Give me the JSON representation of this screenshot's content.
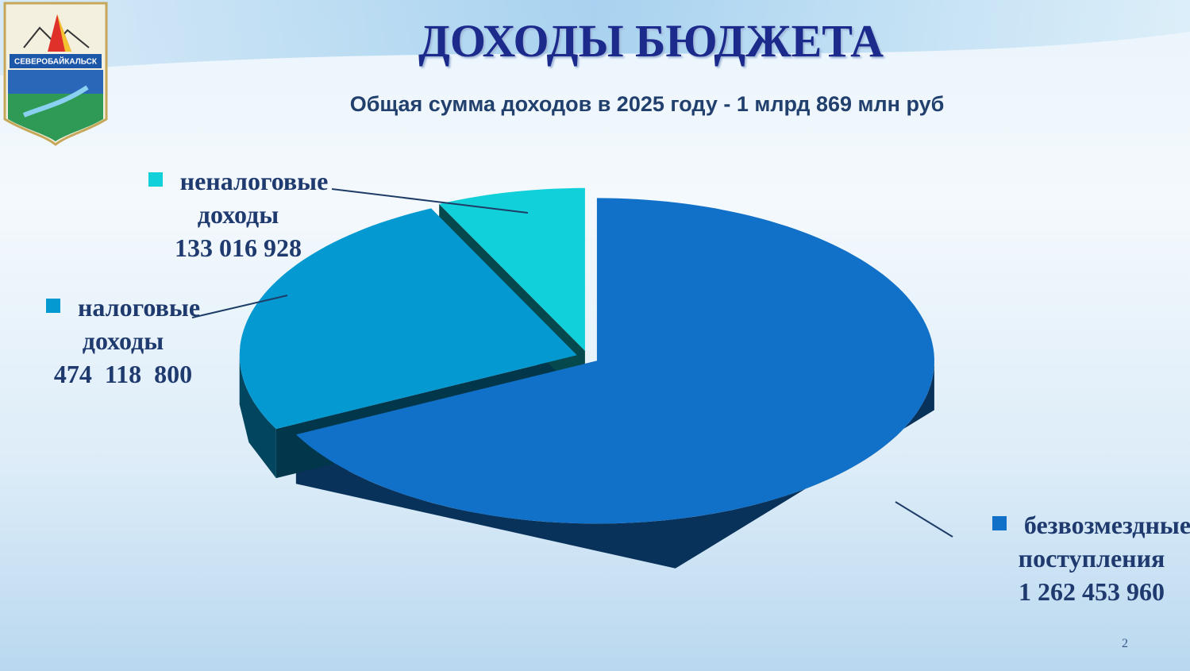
{
  "logo": {
    "text": "СЕВЕРОБАЙКАЛЬСК"
  },
  "slide_number": "2",
  "chart_data": {
    "type": "pie",
    "title": "ДОХОДЫ БЮДЖЕТА",
    "subtitle": "Общая сумма доходов в 2025 году - 1 млрд 869 млн руб",
    "categories": [
      "безвозмездные поступления",
      "налоговые доходы",
      "неналоговые доходы"
    ],
    "values": [
      1262453960,
      474118800,
      133016928
    ],
    "value_labels": [
      "1 262 453 960",
      "474  118  800",
      "133 016 928"
    ],
    "colors": [
      "#1170c8",
      "#0599d2",
      "#12d0da"
    ]
  }
}
